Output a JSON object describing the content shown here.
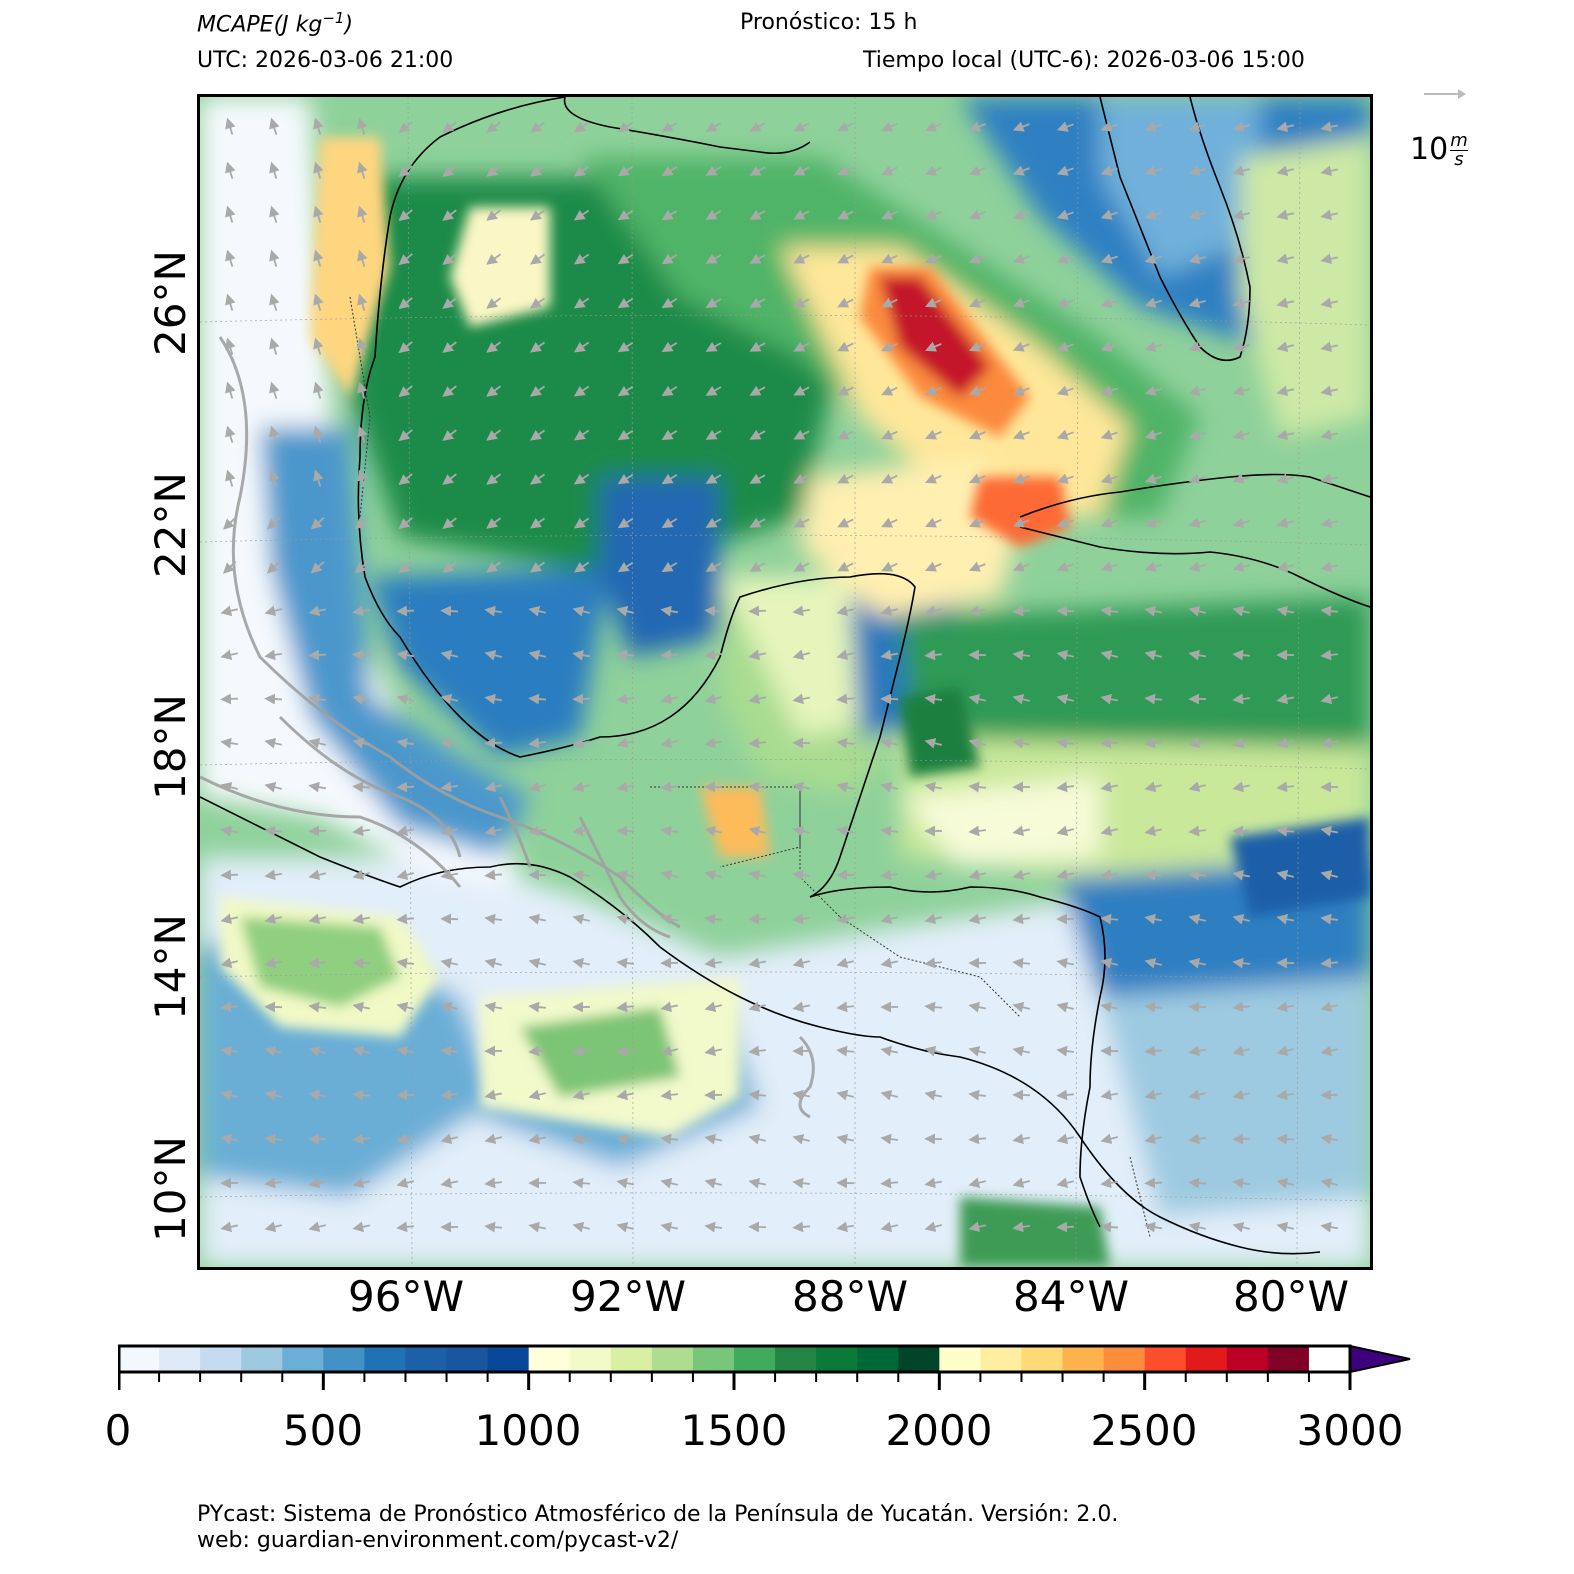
{
  "header": {
    "variable": "MCAPE",
    "units_open": "(J kg",
    "units_exp": "−1",
    "units_close": ")",
    "forecast": "Pronóstico: 15 h",
    "utc": "UTC:  2026-03-06 21:00",
    "local_time": "Tiempo local (UTC-6): 2026-03-06 15:00"
  },
  "wind_reference": {
    "value": "10",
    "unit_num": "m",
    "unit_den": "s"
  },
  "map": {
    "lat_labels": [
      "26°N",
      "22°N",
      "18°N",
      "14°N",
      "10°N"
    ],
    "lon_labels": [
      "96°W",
      "92°W",
      "88°W",
      "84°W",
      "80°W"
    ],
    "lat_range": [
      8.3,
      29.3
    ],
    "lon_range": [
      -100.2,
      -78.8
    ]
  },
  "colorbar": {
    "ticks": [
      "0",
      "500",
      "1000",
      "1500",
      "2000",
      "2500",
      "3000"
    ],
    "min": 0,
    "max": 3000,
    "step": 100,
    "extend": "max",
    "colors": [
      "#f3f8fe",
      "#deebf7",
      "#c6dbef",
      "#9ecae1",
      "#6baed6",
      "#4292c6",
      "#2171b5",
      "#1d60a8",
      "#1a56a0",
      "#08479a",
      "#ffffd9",
      "#f2fac8",
      "#d9f0a3",
      "#addd8e",
      "#78c679",
      "#41ab5d",
      "#238443",
      "#0b7a38",
      "#006837",
      "#004529",
      "#ffffcc",
      "#ffeda0",
      "#fed976",
      "#feb24c",
      "#fd8d3c",
      "#fc4e2a",
      "#e31a1c",
      "#bd0026",
      "#800026",
      "#ffffff",
      "#efedf5",
      "#dadaeb",
      "#bcbddc",
      "#9e9ac8",
      "#807dba",
      "#6a51a3",
      "#54278f",
      "#3f007d"
    ]
  },
  "footer": {
    "line1": "PYcast: Sistema de Pronóstico Atmosférico de la Península de Yucatán. Versión: 2.0.",
    "line2": "web: guardian-environment.com/pycast-v2/"
  }
}
